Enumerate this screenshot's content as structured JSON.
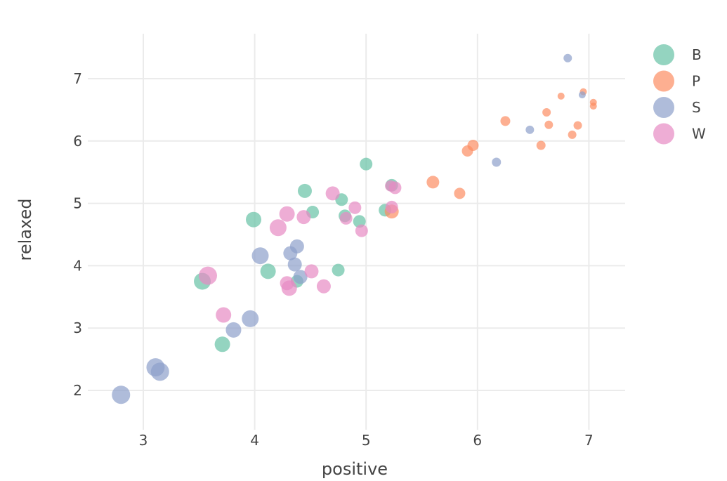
{
  "chart_data": {
    "type": "scatter",
    "title": "",
    "xlabel": "positive",
    "ylabel": "relaxed",
    "xlim": [
      2.5,
      7.3
    ],
    "ylim": [
      1.5,
      7.7
    ],
    "xticks": [
      3,
      4,
      5,
      6,
      7
    ],
    "yticks": [
      2,
      3,
      4,
      5,
      6,
      7
    ],
    "grid": true,
    "legend_position": "top-right",
    "size_note": "marker size is relative (arbitrary units)",
    "series": [
      {
        "name": "B",
        "color": "#66c2a5",
        "points": [
          {
            "x": 5.0,
            "y": 5.63,
            "s": 9
          },
          {
            "x": 5.23,
            "y": 5.29,
            "s": 9
          },
          {
            "x": 4.45,
            "y": 5.2,
            "s": 10
          },
          {
            "x": 4.78,
            "y": 5.06,
            "s": 9
          },
          {
            "x": 4.52,
            "y": 4.86,
            "s": 9
          },
          {
            "x": 3.99,
            "y": 4.74,
            "s": 11
          },
          {
            "x": 4.81,
            "y": 4.8,
            "s": 9
          },
          {
            "x": 4.94,
            "y": 4.71,
            "s": 9
          },
          {
            "x": 5.17,
            "y": 4.89,
            "s": 9
          },
          {
            "x": 4.12,
            "y": 3.91,
            "s": 11
          },
          {
            "x": 4.75,
            "y": 3.93,
            "s": 9
          },
          {
            "x": 3.53,
            "y": 3.75,
            "s": 12
          },
          {
            "x": 4.38,
            "y": 3.75,
            "s": 9
          },
          {
            "x": 3.71,
            "y": 2.74,
            "s": 11
          }
        ]
      },
      {
        "name": "P",
        "color": "#fc8d62",
        "points": [
          {
            "x": 5.23,
            "y": 4.87,
            "s": 10
          },
          {
            "x": 5.6,
            "y": 5.34,
            "s": 9
          },
          {
            "x": 5.84,
            "y": 5.16,
            "s": 8
          },
          {
            "x": 5.91,
            "y": 5.84,
            "s": 8
          },
          {
            "x": 5.96,
            "y": 5.93,
            "s": 8
          },
          {
            "x": 6.25,
            "y": 6.32,
            "s": 7
          },
          {
            "x": 6.62,
            "y": 6.46,
            "s": 6
          },
          {
            "x": 6.64,
            "y": 6.26,
            "s": 6
          },
          {
            "x": 6.57,
            "y": 5.93,
            "s": 6.5
          },
          {
            "x": 6.75,
            "y": 6.72,
            "s": 5
          },
          {
            "x": 6.9,
            "y": 6.25,
            "s": 6
          },
          {
            "x": 6.85,
            "y": 6.1,
            "s": 6
          },
          {
            "x": 6.95,
            "y": 6.79,
            "s": 5
          },
          {
            "x": 7.04,
            "y": 6.62,
            "s": 5
          },
          {
            "x": 7.04,
            "y": 6.56,
            "s": 5
          }
        ]
      },
      {
        "name": "S",
        "color": "#8da0cb",
        "points": [
          {
            "x": 6.81,
            "y": 7.33,
            "s": 6
          },
          {
            "x": 6.94,
            "y": 6.74,
            "s": 5
          },
          {
            "x": 6.47,
            "y": 6.18,
            "s": 6
          },
          {
            "x": 6.17,
            "y": 5.66,
            "s": 6.5
          },
          {
            "x": 4.38,
            "y": 4.31,
            "s": 10
          },
          {
            "x": 4.32,
            "y": 4.2,
            "s": 10
          },
          {
            "x": 4.05,
            "y": 4.16,
            "s": 12
          },
          {
            "x": 4.36,
            "y": 4.02,
            "s": 10
          },
          {
            "x": 4.41,
            "y": 3.82,
            "s": 10
          },
          {
            "x": 3.96,
            "y": 3.15,
            "s": 12
          },
          {
            "x": 3.81,
            "y": 2.97,
            "s": 11
          },
          {
            "x": 3.11,
            "y": 2.37,
            "s": 13
          },
          {
            "x": 3.15,
            "y": 2.3,
            "s": 13
          },
          {
            "x": 2.8,
            "y": 1.93,
            "s": 13
          }
        ]
      },
      {
        "name": "W",
        "color": "#e78ac3",
        "points": [
          {
            "x": 4.7,
            "y": 5.16,
            "s": 10
          },
          {
            "x": 4.29,
            "y": 4.83,
            "s": 11
          },
          {
            "x": 4.9,
            "y": 4.93,
            "s": 9
          },
          {
            "x": 5.22,
            "y": 5.28,
            "s": 8
          },
          {
            "x": 5.26,
            "y": 5.25,
            "s": 9
          },
          {
            "x": 5.23,
            "y": 4.94,
            "s": 9
          },
          {
            "x": 4.44,
            "y": 4.78,
            "s": 10
          },
          {
            "x": 4.82,
            "y": 4.76,
            "s": 9
          },
          {
            "x": 4.21,
            "y": 4.61,
            "s": 12
          },
          {
            "x": 4.96,
            "y": 4.56,
            "s": 9
          },
          {
            "x": 4.51,
            "y": 3.91,
            "s": 10
          },
          {
            "x": 4.29,
            "y": 3.72,
            "s": 10
          },
          {
            "x": 4.31,
            "y": 3.64,
            "s": 11
          },
          {
            "x": 4.62,
            "y": 3.67,
            "s": 10
          },
          {
            "x": 3.58,
            "y": 3.84,
            "s": 13
          },
          {
            "x": 3.72,
            "y": 3.21,
            "s": 11
          }
        ]
      }
    ]
  }
}
